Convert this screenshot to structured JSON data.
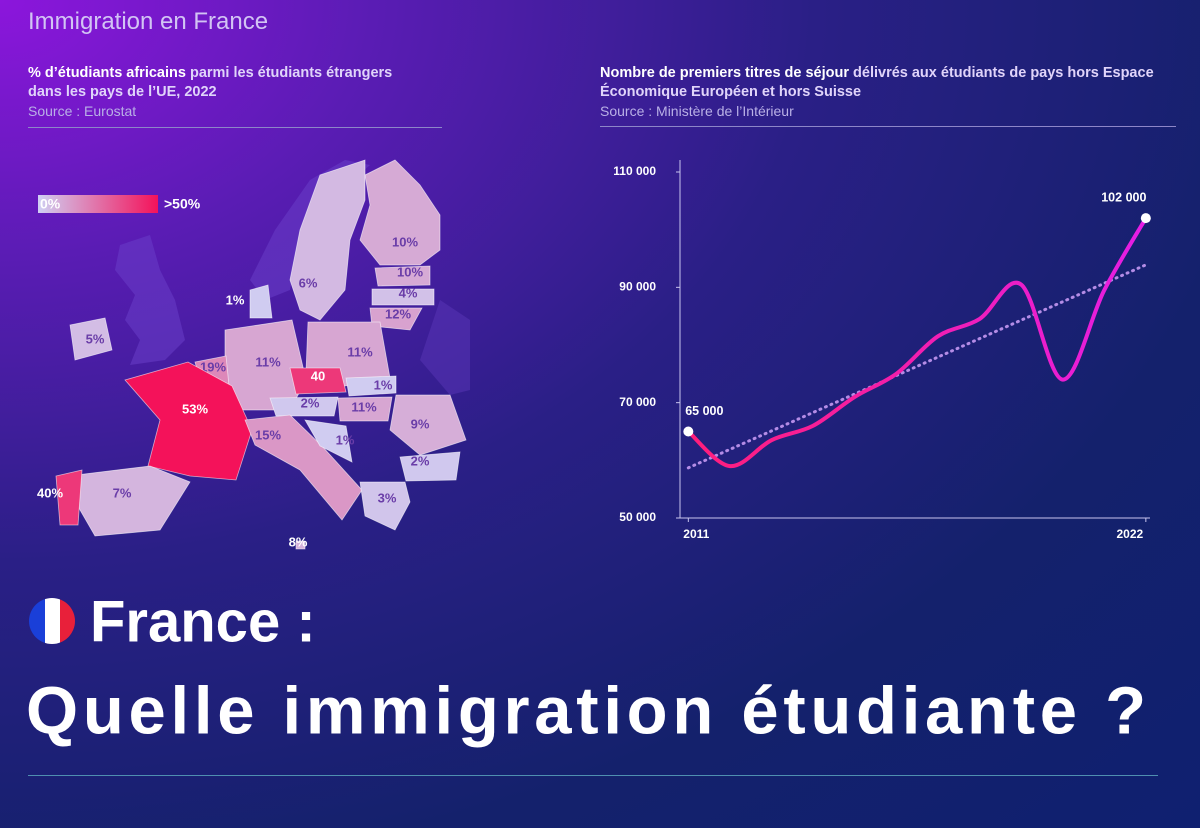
{
  "header": {
    "title": "Immigration en France"
  },
  "chart_data": [
    {
      "type": "map",
      "title_bold": "% d’étudiants africains",
      "title": " parmi les étudiants étrangers dans les pays de l’UE, 2022",
      "source": "Source : Eurostat",
      "legend": {
        "min_label": "0%",
        "max_label": ">50%"
      },
      "color_domain": [
        0,
        50
      ],
      "color_scale": [
        "#cfd0f4",
        "#f4125a"
      ],
      "values": [
        10,
        10,
        4,
        12,
        6,
        1,
        5,
        11,
        11,
        19,
        53,
        40,
        1,
        2,
        11,
        15,
        1,
        9,
        2,
        3,
        8,
        7,
        40
      ],
      "value_labels": [
        "10%",
        "10%",
        "4%",
        "12%",
        "6%",
        "1%",
        "5%",
        "11%",
        "11%",
        "19%",
        "53%",
        "40",
        "1%",
        "2%",
        "11%",
        "15%",
        "1%",
        "9%",
        "2%",
        "3%",
        "8%",
        "7%",
        "40%"
      ]
    },
    {
      "type": "line",
      "title_bold": "Nombre de premiers titres de séjour",
      "title": " délivrés aux étudiants de pays hors Espace Économique Européen et hors Suisse",
      "source": "Source : Ministère de l’Intérieur",
      "x": [
        2011,
        2012,
        2013,
        2014,
        2015,
        2016,
        2017,
        2018,
        2019,
        2020,
        2021,
        2022
      ],
      "series": [
        {
          "colors": [
            "#ff1e78",
            "#e51ee6"
          ],
          "values": [
            65000,
            59000,
            63500,
            66000,
            71000,
            75000,
            81500,
            84500,
            90500,
            74000,
            89500,
            102000
          ]
        }
      ],
      "trend": {
        "color": "#b48ce6",
        "values": [
          58700,
          93900
        ]
      },
      "annotations": [
        {
          "text": "65 000",
          "x": 2011,
          "y": 65000
        },
        {
          "text": "102 000",
          "x": 2022,
          "y": 102000
        }
      ],
      "xlim": [
        2010.8,
        2022.1
      ],
      "xticks": [
        2011,
        2022
      ],
      "ylim": [
        50000,
        110000
      ],
      "yticks": [
        {
          "value": 50000,
          "label": "50 000"
        },
        {
          "value": 70000,
          "label": "70 000"
        },
        {
          "value": 90000,
          "label": "90 000"
        },
        {
          "value": 110000,
          "label": "110 000"
        }
      ]
    }
  ],
  "headline": {
    "line1": "France :",
    "line2": "Quelle immigration étudiante ?"
  }
}
